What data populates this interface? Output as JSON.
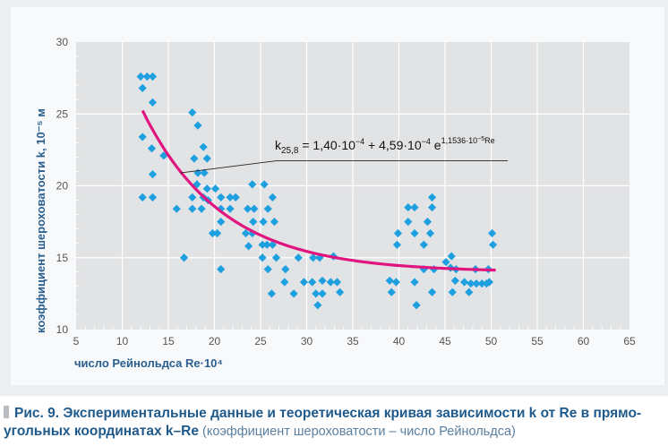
{
  "chart_data": {
    "type": "scatter",
    "xlabel": "число Рейнольдса Re·10⁴",
    "ylabel": "коэффициент шероховатости k, 10⁻⁵ м",
    "xlim": [
      5,
      65
    ],
    "ylim": [
      10,
      30
    ],
    "xticks": [
      5,
      10,
      15,
      20,
      25,
      30,
      35,
      40,
      45,
      50,
      55,
      60,
      65
    ],
    "yticks": [
      10,
      15,
      20,
      25,
      30
    ],
    "grid": true,
    "colors": {
      "points": "#1ea0e0",
      "curve": "#e0157f",
      "plot_bg": "#e2e3e5",
      "grid": "#ffffff"
    },
    "annotation": {
      "k": "k",
      "sub": "25,8",
      "eq1": " = 1,40·10",
      "exp1": "−4",
      "eq2": " + 4,59·10",
      "exp2": "−4",
      "eq3": " e",
      "exp3": "1,1536·10",
      "exp3b": "−5",
      "exp3c": "Re"
    },
    "curve": {
      "formula": "k = 14.0 + 45.9·exp(−0.11536·Re)",
      "a": 14.0,
      "b": 45.9,
      "c": 0.11536,
      "x_range": [
        12.2,
        50.5
      ]
    },
    "points": [
      [
        12.0,
        27.6
      ],
      [
        12.7,
        27.6
      ],
      [
        13.3,
        27.6
      ],
      [
        12.2,
        26.8
      ],
      [
        13.3,
        25.8
      ],
      [
        12.2,
        23.4
      ],
      [
        13.2,
        22.6
      ],
      [
        14.5,
        22.1
      ],
      [
        13.3,
        20.8
      ],
      [
        12.2,
        19.2
      ],
      [
        13.3,
        19.2
      ],
      [
        15.9,
        18.4
      ],
      [
        16.7,
        15.0
      ],
      [
        17.6,
        25.1
      ],
      [
        18.2,
        24.2
      ],
      [
        18.8,
        22.7
      ],
      [
        17.8,
        21.9
      ],
      [
        19.2,
        21.9
      ],
      [
        18.2,
        20.9
      ],
      [
        18.9,
        20.9
      ],
      [
        18.1,
        20.1
      ],
      [
        19.2,
        19.8
      ],
      [
        20.1,
        19.8
      ],
      [
        17.6,
        19.2
      ],
      [
        18.8,
        19.2
      ],
      [
        19.3,
        19.0
      ],
      [
        17.6,
        18.4
      ],
      [
        18.6,
        18.4
      ],
      [
        20.7,
        19.2
      ],
      [
        21.7,
        19.2
      ],
      [
        22.3,
        19.2
      ],
      [
        20.7,
        18.4
      ],
      [
        21.7,
        18.4
      ],
      [
        20.7,
        17.5
      ],
      [
        19.8,
        16.7
      ],
      [
        20.3,
        16.7
      ],
      [
        20.7,
        14.2
      ],
      [
        24.1,
        20.1
      ],
      [
        25.4,
        20.1
      ],
      [
        26.3,
        19.2
      ],
      [
        23.6,
        18.4
      ],
      [
        24.3,
        18.4
      ],
      [
        25.8,
        18.4
      ],
      [
        24.2,
        17.5
      ],
      [
        25.3,
        17.5
      ],
      [
        26.5,
        17.5
      ],
      [
        23.4,
        16.7
      ],
      [
        24.1,
        16.7
      ],
      [
        23.7,
        15.8
      ],
      [
        25.2,
        15.9
      ],
      [
        25.7,
        15.9
      ],
      [
        26.3,
        15.9
      ],
      [
        25.2,
        15.0
      ],
      [
        26.7,
        15.0
      ],
      [
        25.8,
        14.2
      ],
      [
        27.7,
        14.2
      ],
      [
        27.6,
        13.3
      ],
      [
        26.2,
        12.5
      ],
      [
        28.6,
        12.5
      ],
      [
        29.1,
        15.0
      ],
      [
        29.7,
        13.3
      ],
      [
        30.6,
        13.3
      ],
      [
        31.7,
        13.4
      ],
      [
        32.6,
        13.3
      ],
      [
        33.3,
        13.3
      ],
      [
        30.7,
        15.0
      ],
      [
        31.4,
        15.0
      ],
      [
        32.9,
        15.1
      ],
      [
        31.0,
        12.5
      ],
      [
        31.7,
        12.5
      ],
      [
        33.6,
        12.6
      ],
      [
        31.2,
        11.7
      ],
      [
        43.6,
        19.2
      ],
      [
        41.0,
        18.5
      ],
      [
        41.7,
        18.5
      ],
      [
        43.6,
        18.5
      ],
      [
        41.0,
        17.5
      ],
      [
        43.1,
        17.5
      ],
      [
        39.9,
        16.7
      ],
      [
        41.7,
        16.7
      ],
      [
        43.4,
        16.7
      ],
      [
        39.8,
        15.9
      ],
      [
        42.7,
        15.9
      ],
      [
        45.1,
        14.7
      ],
      [
        45.7,
        15.1
      ],
      [
        42.7,
        14.2
      ],
      [
        43.8,
        14.2
      ],
      [
        45.6,
        14.3
      ],
      [
        46.2,
        14.2
      ],
      [
        48.3,
        14.2
      ],
      [
        49.7,
        14.2
      ],
      [
        39.0,
        13.4
      ],
      [
        39.7,
        13.3
      ],
      [
        41.7,
        13.3
      ],
      [
        46.1,
        13.4
      ],
      [
        47.1,
        13.3
      ],
      [
        47.8,
        13.2
      ],
      [
        48.4,
        13.2
      ],
      [
        49.0,
        13.2
      ],
      [
        49.5,
        13.2
      ],
      [
        49.8,
        13.3
      ],
      [
        39.2,
        12.6
      ],
      [
        43.6,
        12.6
      ],
      [
        45.8,
        12.6
      ],
      [
        47.6,
        12.6
      ],
      [
        41.9,
        11.7
      ],
      [
        50.1,
        16.7
      ],
      [
        50.2,
        15.9
      ]
    ]
  },
  "caption": {
    "bold": "Рис. 9. Экспериментальные данные и теоретическая кривая зависимости k от Re в прямо-угольных координатах k–Re",
    "light": " (коэффициент шероховатости – число Рейнольдса)"
  }
}
